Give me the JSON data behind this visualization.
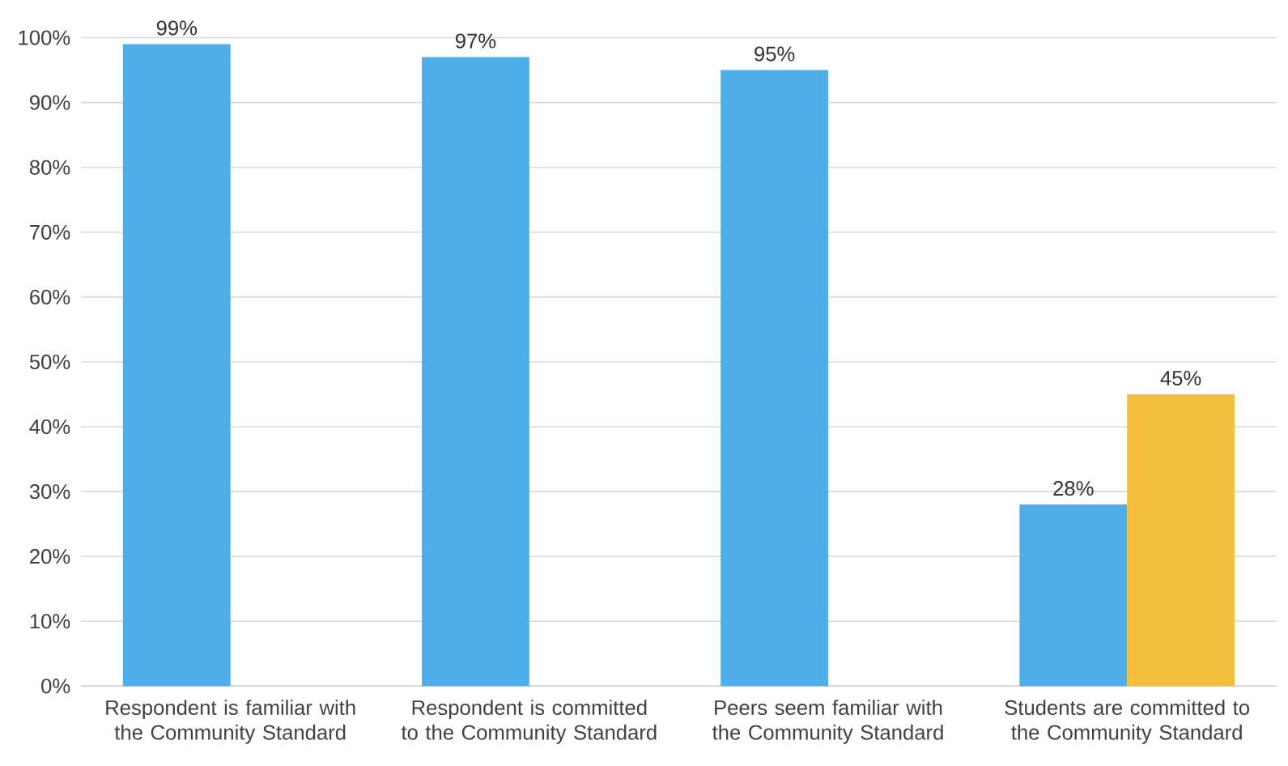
{
  "chart_data": {
    "type": "bar",
    "categories": [
      "Respondent is familiar with the Community Standard",
      "Respondent is committed to the Community Standard",
      "Peers seem familiar with the Community Standard",
      "Students are committed to the Community Standard"
    ],
    "series": [
      {
        "color": "#4daee8",
        "values": [
          99,
          97,
          95,
          28
        ],
        "value_labels": [
          "99%",
          "97%",
          "95%",
          "28%"
        ]
      },
      {
        "color": "#f4bf3f",
        "values": [
          null,
          null,
          null,
          45
        ],
        "value_labels": [
          null,
          null,
          null,
          "45%"
        ]
      }
    ],
    "ylim": [
      0,
      100
    ],
    "yticks": [
      {
        "value": 0,
        "label": "0%"
      },
      {
        "value": 10,
        "label": "10%"
      },
      {
        "value": 20,
        "label": "20%"
      },
      {
        "value": 30,
        "label": "30%"
      },
      {
        "value": 40,
        "label": "40%"
      },
      {
        "value": 50,
        "label": "50%"
      },
      {
        "value": 60,
        "label": "60%"
      },
      {
        "value": 70,
        "label": "70%"
      },
      {
        "value": 80,
        "label": "80%"
      },
      {
        "value": 90,
        "label": "90%"
      },
      {
        "value": 100,
        "label": "100%"
      }
    ],
    "grid": "y"
  }
}
